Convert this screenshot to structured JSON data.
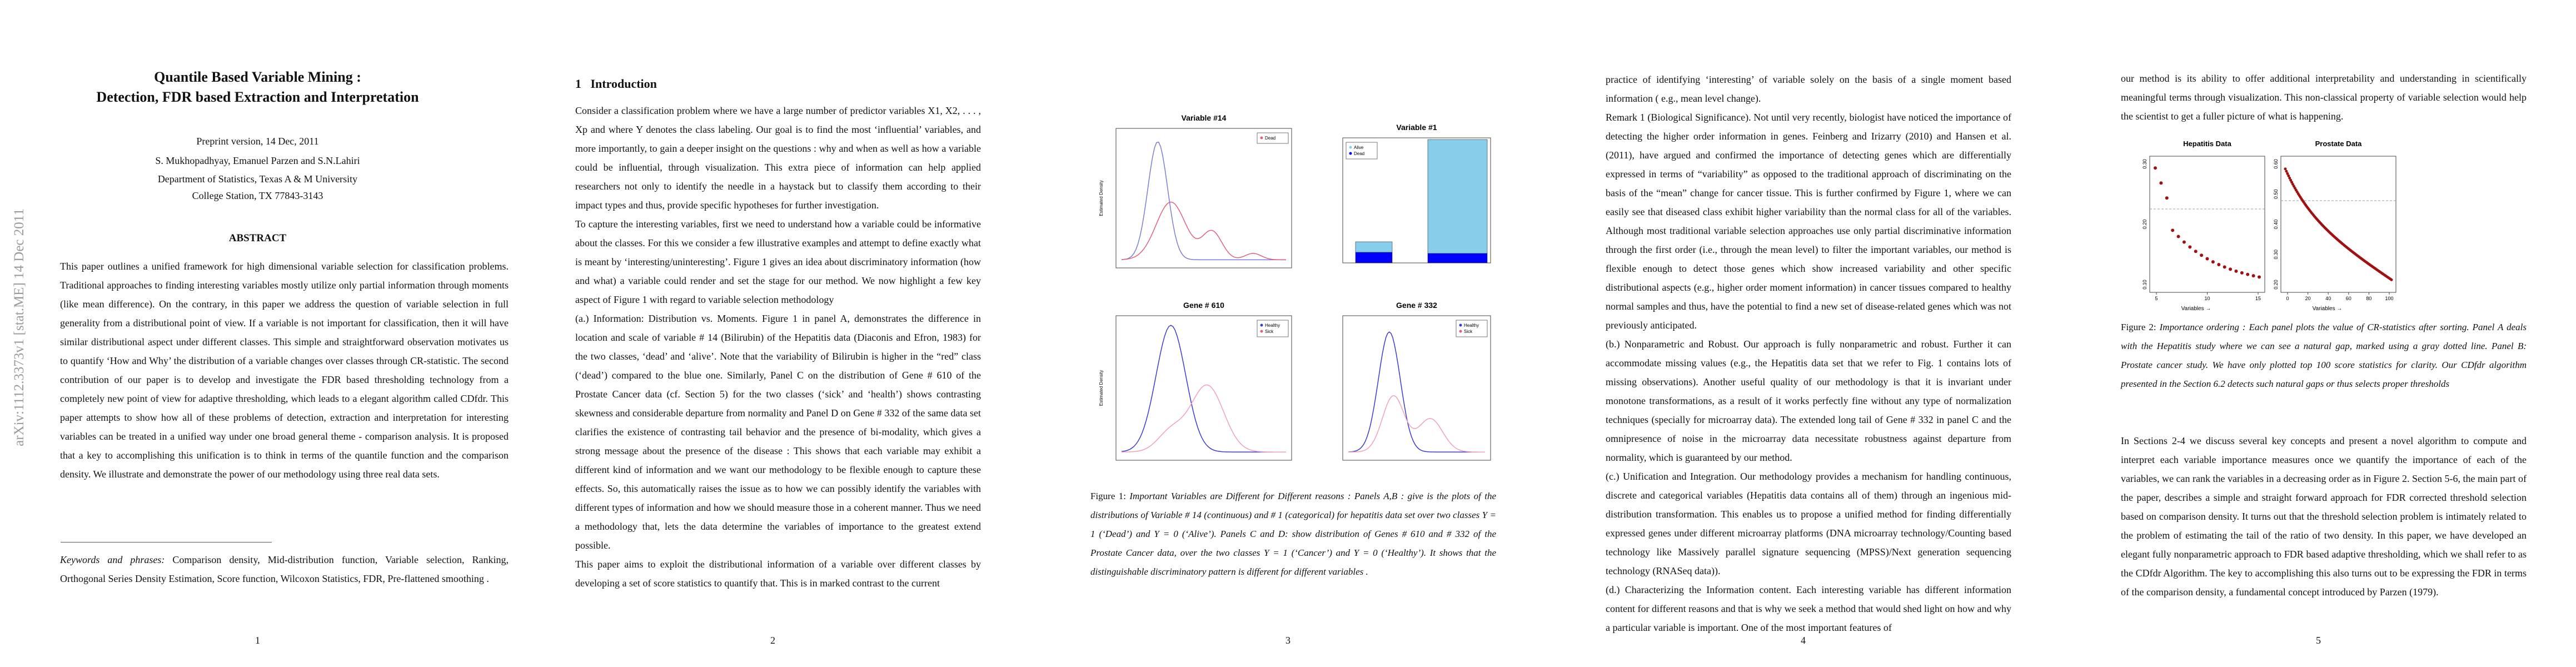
{
  "arxiv_stamp": "arXiv:1112.3373v1 [stat.ME] 14 Dec 2011",
  "page1": {
    "title": [
      "Quantile Based Variable Mining :",
      "Detection, FDR based Extraction and Interpretation"
    ],
    "preprint": "Preprint version, 14 Dec, 2011",
    "authors": "S. Mukhopadhyay, Emanuel Parzen and S.N.Lahiri",
    "department": "Department of Statistics, Texas A & M University",
    "address": "College Station, TX 77843-3143",
    "abstract_heading": "ABSTRACT",
    "abstract": "This paper outlines a unified framework for high dimensional variable selection for classification problems. Traditional approaches to finding interesting variables mostly utilize only partial information through moments (like mean difference). On the contrary, in this paper we address the question of variable selection in full generality from a distributional point of view. If a variable is not important for classification, then it will have similar distributional aspect under different classes. This simple and straightforward observation motivates us to quantify ‘How and Why’ the distribution of a variable changes over classes through CR-statistic. The second contribution of our paper is to develop and investigate the FDR based thresholding technology from a completely new point of view for adaptive thresholding, which leads to a elegant algorithm called CDfdr. This paper attempts to show how all of these problems of detection, extraction and interpretation for interesting variables can be treated in a unified way under one broad general theme - comparison analysis. It is proposed that a key to accomplishing this unification is to think in terms of the quantile function and the comparison density. We illustrate and demonstrate the power of our methodology using three real data sets.",
    "keywords_label": "Keywords and phrases:",
    "keywords": "Comparison density, Mid-distribution function, Variable selection, Ranking, Orthogonal Series Density Estimation, Score function, Wilcoxon Statistics, FDR, Pre-flattened smoothing .",
    "page_number": "1"
  },
  "page2": {
    "section_number": "1",
    "section_title": "Introduction",
    "paragraphs": [
      "Consider a classification problem where we have a large number of predictor variables X1, X2, . . . , Xp and where Y denotes the class labeling. Our goal is to find the most ‘influential’ variables, and more importantly, to gain a deeper insight on the questions : why and when as well as how a variable could be influential, through visualization. This extra piece of information can help applied researchers not only to identify the needle in a haystack but to classify them according to their impact types and thus, provide specific hypotheses for further investigation.",
      "To capture the interesting variables, first we need to understand how a variable could be informative about the classes. For this we consider a few illustrative examples and attempt to define exactly what is meant by ‘interesting/uninteresting’. Figure 1 gives an idea about discriminatory information (how and what) a variable could render and set the stage for our method. We now highlight a few key aspect of Figure 1 with regard to variable selection methodology",
      "(a.) Information: Distribution vs. Moments. Figure 1 in panel A, demonstrates the difference in location and scale of variable # 14 (Bilirubin) of the Hepatitis data (Diaconis and Efron, 1983) for the two classes, ‘dead’ and ‘alive’. Note that the variability of Bilirubin is higher in the “red” class (‘dead’) compared to the blue one. Similarly, Panel C on the distribution of Gene # 610 of the Prostate Cancer data (cf. Section 5) for the two classes (‘sick’ and ‘health’) shows contrasting skewness and considerable departure from normality and Panel D on Gene # 332 of the same data set clarifies the existence of contrasting tail behavior and the presence of bi-modality, which gives a strong message about the presence of the disease : This shows that each variable may exhibit a different kind of information and we want our methodology to be flexible enough to capture these effects. So, this automatically raises the issue as to how we can possibly identify the variables with different types of information and how we should measure those in a coherent manner. Thus we need a methodology that, lets the data determine the variables of importance to the greatest extend possible.",
      "This paper aims to exploit the distributional information of a variable over different classes by developing a set of score statistics to quantify that. This is in marked contrast to the current"
    ],
    "page_number": "2"
  },
  "page3": {
    "figures": [
      {
        "title": "Variable #14",
        "y_label": "Estimated Density",
        "legend": [
          "Dead"
        ]
      },
      {
        "title": "Variable #1",
        "legend": [
          "Alive",
          "Dead"
        ]
      },
      {
        "title": "Gene # 610",
        "y_label": "Estimated Density",
        "legend": [
          "Healthy",
          "Sick"
        ]
      },
      {
        "title": "Gene # 332",
        "legend": [
          "Healthy",
          "Sick"
        ]
      }
    ],
    "caption_label": "Figure 1:",
    "caption": "Important Variables are Different for Different reasons : Panels A,B : give is the plots of the distributions of Variable # 14 (continuous) and # 1 (categorical) for hepatitis data set over two classes Y = 1 (‘Dead’) and Y = 0 (‘Alive’). Panels C and D: show distribution of Genes # 610 and # 332 of the Prostate Cancer data, over the two classes Y = 1 (‘Cancer’) and Y = 0 (‘Healthy’). It shows that the distinguishable discriminatory pattern is different for different variables .",
    "page_number": "3"
  },
  "page4": {
    "paragraphs": [
      "practice of identifying ‘interesting’ of variable solely on the basis of a single moment based information ( e.g., mean level change).",
      "Remark 1 (Biological Significance). Not until very recently, biologist have noticed the importance of detecting the higher order information in genes. Feinberg and Irizarry (2010) and Hansen et al. (2011), have argued and confirmed the importance of detecting genes which are differentially expressed in terms of “variability” as opposed to the traditional approach of discriminating on the basis of the “mean” change for cancer tissue. This is further confirmed by Figure 1, where we can easily see that diseased class exhibit higher variability than the normal class for all of the variables. Although most traditional variable selection approaches use only partial discriminative information through the first order (i.e., through the mean level) to filter the important variables, our method is flexible enough to detect those genes which show increased variability and other specific distributional aspects (e.g., higher order moment information) in cancer tissues compared to healthy normal samples and thus, have the potential to find a new set of disease-related genes which was not previously anticipated.",
      "(b.) Nonparametric and Robust. Our approach is fully nonparametric and robust. Further it can accommodate missing values (e.g., the Hepatitis data set that we refer to Fig. 1 contains lots of missing observations). Another useful quality of our methodology is that it is invariant under monotone transformations, as a result of it works perfectly fine without any type of normalization techniques (specially for microarray data). The extended long tail of Gene # 332 in panel C and the omnipresence of noise in the microarray data necessitate robustness against departure from normality, which is guaranteed by our method.",
      "(c.) Unification and Integration. Our methodology provides a mechanism for handling continuous, discrete and categorical variables (Hepatitis data contains all of them) through an ingenious mid-distribution transformation. This enables us to propose a unified method for finding differentially expressed genes under different microarray platforms (DNA microarray technology/Counting based technology like Massively parallel signature sequencing (MPSS)/Next generation sequencing technology (RNASeq data)).",
      "(d.) Characterizing the Information content. Each interesting variable has different information content for different reasons and that is why we seek a method that would shed light on how and why a particular variable is important. One of the most important features of"
    ],
    "page_number": "4"
  },
  "page5": {
    "paragraphs_top": [
      "our method is its ability to offer additional interpretability and understanding in scientifically meaningful terms through visualization. This non-classical property of variable selection would help the scientist to get a fuller picture of what is happening."
    ],
    "figures": [
      {
        "title": "Hepatitis Data",
        "x_label": "Variables →",
        "x_ticks": [
          "5",
          "10",
          "15"
        ],
        "y_ticks": [
          "0.30",
          "0.20",
          "0.10"
        ]
      },
      {
        "title": "Prostate Data",
        "x_label": "Variables →",
        "x_ticks": [
          "0",
          "20",
          "40",
          "60",
          "80",
          "100"
        ],
        "y_ticks": [
          "0.60",
          "0.50",
          "0.40",
          "0.30",
          "0.20"
        ]
      }
    ],
    "caption_label": "Figure 2:",
    "caption": "Importance ordering : Each panel plots the value of CR-statistics after sorting. Panel A deals with the Hepatitis study where we can see a natural gap, marked using a gray dotted line. Panel B: Prostate cancer study. We have only plotted top 100 score statistics for clarity. Our CDfdr algorithm presented in the Section 6.2 detects such natural gaps or thus selects proper thresholds",
    "paragraphs_bottom": [
      "In Sections 2-4 we discuss several key concepts and present a novel algorithm to compute and interpret each variable importance measures once we quantify the importance of each of the variables, we can rank the variables in a decreasing order as in Figure 2. Section 5-6, the main part of the paper, describes a simple and straight forward approach for FDR corrected threshold selection based on comparison density. It turns out that the threshold selection problem is intimately related to the problem of estimating the tail of the ratio of two density. In this paper, we have developed an elegant fully nonparametric approach to FDR based adaptive thresholding, which we shall refer to as the CDfdr Algorithm. The key to accomplishing this also turns out to be expressing the FDR in terms of the comparison density, a fundamental concept introduced by Parzen (1979)."
    ],
    "page_number": "5"
  }
}
